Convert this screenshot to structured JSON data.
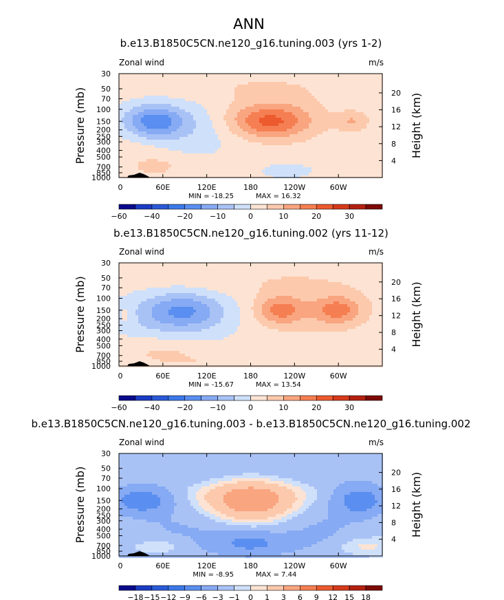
{
  "figure": {
    "title": "ANN",
    "units": "m/s",
    "var_label": "Zonal wind",
    "ylabel_left": "Pressure (mb)",
    "ylabel_right": "Height (km)",
    "pressure_ticks": [
      "30",
      "50",
      "70",
      "100",
      "150",
      "200",
      "250",
      "300",
      "400",
      "500",
      "700",
      "850",
      "1000"
    ],
    "height_ticks": [
      "20",
      "16",
      "12",
      "8",
      "4"
    ],
    "lon_ticks": [
      "0",
      "60E",
      "120E",
      "180",
      "120W",
      "60W"
    ]
  },
  "chart_data": [
    {
      "type": "heatmap",
      "title": "b.e13.B1850C5CN.ne120_g16.tuning.003 (yrs 1-2)",
      "min_label": "MIN = -18.25",
      "max_label": "MAX = 16.32",
      "min": -18.25,
      "max": 16.32,
      "colorbar_levels": [
        -60,
        -50,
        -40,
        -30,
        -20,
        -15,
        -10,
        -5,
        0,
        5,
        10,
        15,
        20,
        25,
        30,
        35
      ],
      "colorbar_labels": [
        "-60",
        "-40",
        "-20",
        "-10",
        "0",
        "10",
        "20",
        "30"
      ],
      "colorbar_colors": [
        "#0a0a8c",
        "#1a3bc4",
        "#2a5ad8",
        "#3c78e8",
        "#5a8ef0",
        "#86aaf3",
        "#a9c2f6",
        "#cfe0fa",
        "#fde3d3",
        "#fcc9ac",
        "#f9a580",
        "#f57f52",
        "#ec5a2e",
        "#d63a1a",
        "#b32010",
        "#7d0a06"
      ]
    },
    {
      "type": "heatmap",
      "title": "b.e13.B1850C5CN.ne120_g16.tuning.002 (yrs 11-12)",
      "min_label": "MIN = -15.67",
      "max_label": "MAX = 13.54",
      "min": -15.67,
      "max": 13.54,
      "colorbar_levels": [
        -60,
        -50,
        -40,
        -30,
        -20,
        -15,
        -10,
        -5,
        0,
        5,
        10,
        15,
        20,
        25,
        30,
        35
      ],
      "colorbar_labels": [
        "-60",
        "-40",
        "-20",
        "-10",
        "0",
        "10",
        "20",
        "30"
      ],
      "colorbar_colors": [
        "#0a0a8c",
        "#1a3bc4",
        "#2a5ad8",
        "#3c78e8",
        "#5a8ef0",
        "#86aaf3",
        "#a9c2f6",
        "#cfe0fa",
        "#fde3d3",
        "#fcc9ac",
        "#f9a580",
        "#f57f52",
        "#ec5a2e",
        "#d63a1a",
        "#b32010",
        "#7d0a06"
      ]
    },
    {
      "type": "heatmap",
      "title": "b.e13.B1850C5CN.ne120_g16.tuning.003 - b.e13.B1850C5CN.ne120_g16.tuning.002",
      "min_label": "MIN = -8.95",
      "max_label": "MAX = 7.44",
      "min": -8.95,
      "max": 7.44,
      "colorbar_levels": [
        -21,
        -18,
        -15,
        -12,
        -9,
        -6,
        -3,
        -1,
        0,
        1,
        3,
        6,
        9,
        12,
        15,
        18,
        21
      ],
      "colorbar_labels": [
        "-18",
        "-15",
        "-12",
        "-9",
        "-6",
        "-3",
        "-1",
        "0",
        "1",
        "3",
        "6",
        "9",
        "12",
        "15",
        "18"
      ],
      "colorbar_colors": [
        "#0a0a8c",
        "#1a3bc4",
        "#2a5ad8",
        "#3c78e8",
        "#5a8ef0",
        "#86aaf3",
        "#a9c2f6",
        "#cfe0fa",
        "#fde3d3",
        "#fcc9ac",
        "#f9a580",
        "#f57f52",
        "#ec5a2e",
        "#d63a1a",
        "#b32010",
        "#7d0a06"
      ]
    }
  ]
}
